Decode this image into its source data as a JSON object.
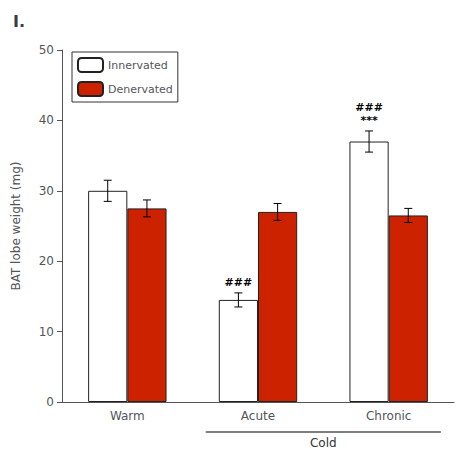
{
  "chart_data": {
    "type": "bar",
    "title": "I.",
    "ylabel": "BAT lobe weight (mg)",
    "categories": [
      "Warm",
      "Acute",
      "Chronic"
    ],
    "series": [
      {
        "name": "Innervated",
        "color": "white",
        "values": [
          30.0,
          14.5,
          37.0
        ],
        "errors": [
          1.5,
          1.0,
          1.5
        ]
      },
      {
        "name": "Denervated",
        "color": "#cc2200",
        "values": [
          27.5,
          27.0,
          26.5
        ],
        "errors": [
          1.2,
          1.2,
          1.0
        ]
      }
    ],
    "ylim": [
      0,
      50
    ],
    "yticks": [
      0,
      10,
      20,
      30,
      40,
      50
    ],
    "grid": false,
    "legend": "upper left",
    "annotations": [
      {
        "text": "###",
        "category": "Acute",
        "series": "Innervated"
      },
      {
        "text": "***",
        "category": "Chronic",
        "series": "Innervated"
      },
      {
        "text": "###",
        "category": "Chronic",
        "series": "Innervated"
      },
      {
        "text": "Cold",
        "categories": [
          "Acute",
          "Chronic"
        ]
      }
    ]
  }
}
